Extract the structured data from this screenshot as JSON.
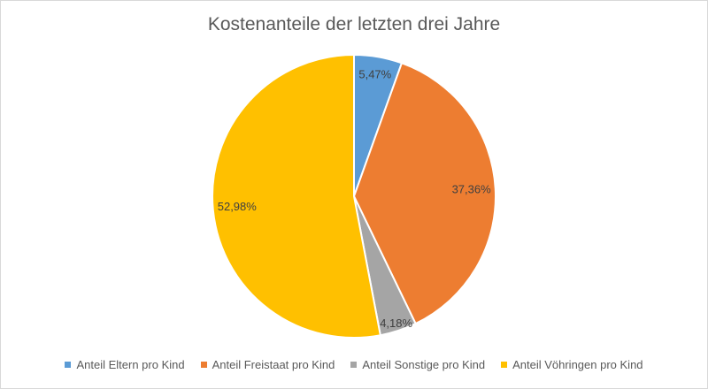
{
  "chart_data": {
    "type": "pie",
    "title": "Kostenanteile der letzten drei Jahre",
    "slices": [
      {
        "name": "Anteil Eltern pro Kind",
        "value": 5.47,
        "label": "5,47%",
        "color": "#5b9bd5"
      },
      {
        "name": "Anteil Freistaat pro Kind",
        "value": 37.36,
        "label": "37,36%",
        "color": "#ed7d31"
      },
      {
        "name": "Anteil Sonstige pro Kind",
        "value": 4.18,
        "label": "4,18%",
        "color": "#a5a5a5"
      },
      {
        "name": "Anteil Vöhringen pro Kind",
        "value": 52.98,
        "label": "52,98%",
        "color": "#ffc000"
      }
    ],
    "legend_position": "bottom"
  }
}
